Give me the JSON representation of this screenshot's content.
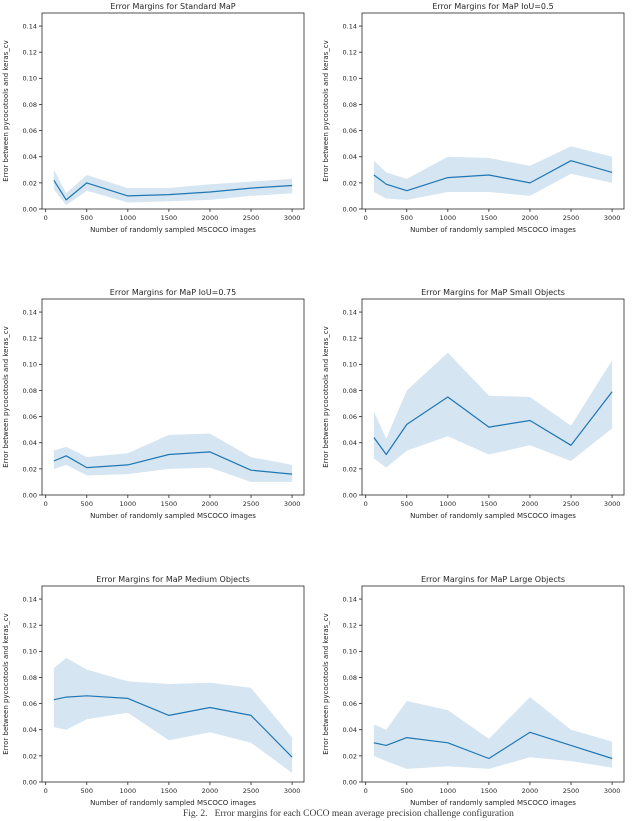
{
  "page": {
    "caption": "Fig. 2.   Error margins for each COCO mean average precision challenge configuration"
  },
  "axes": {
    "xlabel": "Number of randomly sampled MSCOCO images",
    "ylabel": "Error between pycocotools and keras_cv",
    "xticks": [
      0,
      500,
      1000,
      1500,
      2000,
      2500,
      3000
    ],
    "ytick_labels": [
      "0.00",
      "0.02",
      "0.04",
      "0.06",
      "0.08",
      "0.10",
      "0.12",
      "0.14"
    ],
    "xlim": [
      -45,
      3145
    ],
    "ylim": [
      0,
      0.15
    ],
    "grid": false,
    "legend": "none",
    "line_color": "#1f77b4",
    "band_color": "#1f77b4",
    "band_opacity": 0.19,
    "frame_color": "#262626",
    "text_color": "#262626"
  },
  "chart_data": [
    {
      "type": "line",
      "title": "Error Margins for Standard MaP",
      "x": [
        100,
        250,
        500,
        1000,
        1500,
        2000,
        2500,
        3000
      ],
      "y": [
        0.022,
        0.007,
        0.02,
        0.01,
        0.011,
        0.013,
        0.016,
        0.018
      ],
      "band_lower": [
        0.015,
        0.003,
        0.014,
        0.005,
        0.006,
        0.007,
        0.01,
        0.012
      ],
      "band_upper": [
        0.03,
        0.012,
        0.026,
        0.016,
        0.016,
        0.019,
        0.021,
        0.023
      ]
    },
    {
      "type": "line",
      "title": "Error Margins for MaP IoU=0.5",
      "x": [
        100,
        250,
        500,
        1000,
        1500,
        2000,
        2500,
        3000
      ],
      "y": [
        0.026,
        0.019,
        0.014,
        0.024,
        0.026,
        0.02,
        0.037,
        0.028
      ],
      "band_lower": [
        0.013,
        0.008,
        0.007,
        0.013,
        0.013,
        0.01,
        0.027,
        0.02
      ],
      "band_upper": [
        0.037,
        0.028,
        0.023,
        0.04,
        0.039,
        0.033,
        0.048,
        0.04
      ]
    },
    {
      "type": "line",
      "title": "Error Margins for MaP IoU=0.75",
      "x": [
        100,
        250,
        500,
        1000,
        1500,
        2000,
        2500,
        3000
      ],
      "y": [
        0.026,
        0.03,
        0.021,
        0.023,
        0.031,
        0.033,
        0.019,
        0.016
      ],
      "band_lower": [
        0.02,
        0.023,
        0.015,
        0.016,
        0.02,
        0.021,
        0.01,
        0.01
      ],
      "band_upper": [
        0.034,
        0.037,
        0.029,
        0.032,
        0.046,
        0.047,
        0.029,
        0.023
      ]
    },
    {
      "type": "line",
      "title": "Error Margins for MaP Small Objects",
      "x": [
        100,
        250,
        500,
        1000,
        1500,
        2000,
        2500,
        3000
      ],
      "y": [
        0.044,
        0.031,
        0.054,
        0.075,
        0.052,
        0.057,
        0.038,
        0.079
      ],
      "band_lower": [
        0.028,
        0.021,
        0.034,
        0.045,
        0.031,
        0.038,
        0.026,
        0.051
      ],
      "band_upper": [
        0.064,
        0.043,
        0.08,
        0.109,
        0.076,
        0.075,
        0.053,
        0.103
      ]
    },
    {
      "type": "line",
      "title": "Error Margins for MaP Medium Objects",
      "x": [
        100,
        250,
        500,
        1000,
        1500,
        2000,
        2500,
        3000
      ],
      "y": [
        0.063,
        0.065,
        0.066,
        0.064,
        0.051,
        0.057,
        0.051,
        0.019
      ],
      "band_lower": [
        0.042,
        0.04,
        0.048,
        0.053,
        0.032,
        0.038,
        0.03,
        0.007
      ],
      "band_upper": [
        0.087,
        0.095,
        0.086,
        0.077,
        0.075,
        0.076,
        0.072,
        0.034
      ]
    },
    {
      "type": "line",
      "title": "Error Margins for MaP Large Objects",
      "x": [
        100,
        250,
        500,
        1000,
        1500,
        2000,
        2500,
        3000
      ],
      "y": [
        0.03,
        0.028,
        0.034,
        0.03,
        0.018,
        0.038,
        0.028,
        0.018
      ],
      "band_lower": [
        0.02,
        0.016,
        0.01,
        0.012,
        0.01,
        0.019,
        0.016,
        0.011
      ],
      "band_upper": [
        0.044,
        0.04,
        0.062,
        0.055,
        0.033,
        0.065,
        0.04,
        0.031
      ]
    }
  ]
}
